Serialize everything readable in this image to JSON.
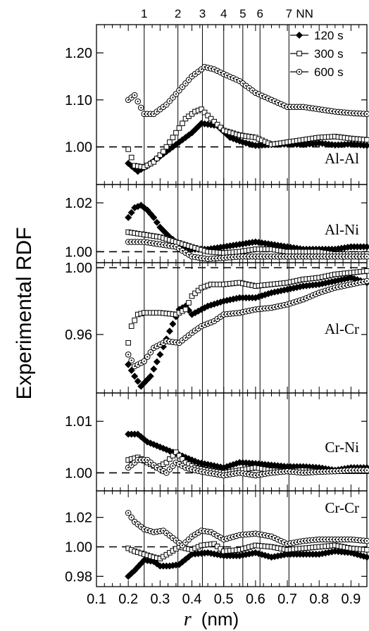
{
  "chart_data": {
    "type": "scatter",
    "ylabel": "Experimental RDF",
    "xlabel_symbol": "r",
    "xlabel_unit": "(nm)",
    "xlim": [
      0.1,
      0.95
    ],
    "x_ticks": [
      "0.1",
      "0.2",
      "0.3",
      "0.4",
      "0.5",
      "0.6",
      "0.7",
      "0.8",
      "0.9"
    ],
    "x_tick_values": [
      0.1,
      0.2,
      0.3,
      0.4,
      0.5,
      0.6,
      0.7,
      0.8,
      0.9
    ],
    "nn_shells": [
      {
        "label": "1",
        "r": 0.25
      },
      {
        "label": "2",
        "r": 0.356
      },
      {
        "label": "3",
        "r": 0.433
      },
      {
        "label": "4",
        "r": 0.5
      },
      {
        "label": "5",
        "r": 0.56
      },
      {
        "label": "6",
        "r": 0.614
      },
      {
        "label": "7",
        "r": 0.705
      }
    ],
    "nn_suffix": "NN",
    "legend": {
      "position": "top-right",
      "entries": [
        {
          "label": "120 s",
          "marker": "diamond"
        },
        {
          "label": "300 s",
          "marker": "square"
        },
        {
          "label": "600 s",
          "marker": "circle-dot"
        }
      ]
    },
    "reference_line": 1.0,
    "panels": [
      {
        "name": "Al-Al",
        "ylim": [
          0.92,
          1.26
        ],
        "y_ticks": [
          {
            "v": 1.0,
            "label": "1.00"
          },
          {
            "v": 1.1,
            "label": "1.10"
          },
          {
            "v": 1.2,
            "label": "1.20"
          }
        ],
        "series": [
          {
            "name": "120 s",
            "r": [
              0.2,
              0.23,
              0.26,
              0.3,
              0.35,
              0.4,
              0.43,
              0.48,
              0.52,
              0.56,
              0.6,
              0.65,
              0.7,
              0.75,
              0.8,
              0.85,
              0.9,
              0.95
            ],
            "g": [
              0.965,
              0.948,
              0.96,
              0.98,
              1.005,
              1.03,
              1.05,
              1.045,
              1.02,
              1.01,
              1.003,
              1.005,
              1.006,
              1.005,
              1.008,
              1.004,
              1.006,
              1.003
            ]
          },
          {
            "name": "300 s",
            "r": [
              0.2,
              0.22,
              0.25,
              0.28,
              0.31,
              0.35,
              0.38,
              0.41,
              0.43,
              0.46,
              0.5,
              0.55,
              0.6,
              0.65,
              0.7,
              0.75,
              0.8,
              0.85,
              0.9,
              0.95
            ],
            "g": [
              0.995,
              0.96,
              0.957,
              0.968,
              0.99,
              1.03,
              1.06,
              1.075,
              1.08,
              1.06,
              1.035,
              1.025,
              1.02,
              1.005,
              1.01,
              1.015,
              1.02,
              1.022,
              1.018,
              1.015
            ]
          },
          {
            "name": "600 s",
            "r": [
              0.2,
              0.22,
              0.25,
              0.28,
              0.32,
              0.36,
              0.4,
              0.44,
              0.47,
              0.5,
              0.55,
              0.6,
              0.65,
              0.7,
              0.75,
              0.8,
              0.85,
              0.9,
              0.95
            ],
            "g": [
              1.1,
              1.11,
              1.07,
              1.07,
              1.09,
              1.12,
              1.15,
              1.17,
              1.165,
              1.155,
              1.14,
              1.115,
              1.1,
              1.085,
              1.085,
              1.08,
              1.075,
              1.072,
              1.07
            ]
          }
        ]
      },
      {
        "name": "Al-Ni",
        "ylim": [
          0.9955,
          1.0275
        ],
        "y_ticks": [
          {
            "v": 1.0,
            "label": "1.00"
          },
          {
            "v": 1.02,
            "label": "1.02"
          }
        ],
        "series": [
          {
            "name": "120 s",
            "r": [
              0.2,
              0.22,
              0.24,
              0.26,
              0.28,
              0.3,
              0.33,
              0.36,
              0.4,
              0.45,
              0.5,
              0.55,
              0.6,
              0.65,
              0.7,
              0.75,
              0.8,
              0.85,
              0.9,
              0.95
            ],
            "g": [
              1.014,
              1.018,
              1.019,
              1.017,
              1.014,
              1.01,
              1.006,
              1.003,
              1.001,
              1.001,
              1.002,
              1.003,
              1.004,
              1.003,
              1.002,
              1.001,
              1.001,
              1.001,
              1.002,
              1.002
            ]
          },
          {
            "name": "300 s",
            "r": [
              0.2,
              0.25,
              0.3,
              0.35,
              0.4,
              0.45,
              0.5,
              0.55,
              0.6,
              0.65,
              0.7,
              0.75,
              0.8,
              0.85,
              0.9,
              0.95
            ],
            "g": [
              1.008,
              1.007,
              1.006,
              1.004,
              1.002,
              1.0,
              0.9995,
              1.0,
              1.001,
              1.001,
              1.0,
              1.0,
              1.0,
              0.999,
              0.999,
              0.999
            ]
          },
          {
            "name": "600 s",
            "r": [
              0.2,
              0.25,
              0.3,
              0.35,
              0.4,
              0.45,
              0.5,
              0.55,
              0.6,
              0.65,
              0.7,
              0.75,
              0.8,
              0.85,
              0.9,
              0.95
            ],
            "g": [
              1.004,
              1.004,
              1.003,
              1.002,
              0.998,
              0.997,
              0.9975,
              0.998,
              0.998,
              0.998,
              0.998,
              0.998,
              0.998,
              0.998,
              0.998,
              0.998
            ]
          }
        ]
      },
      {
        "name": "Al-Cr",
        "ylim": [
          0.925,
          1.003
        ],
        "y_ticks": [
          {
            "v": 0.96,
            "label": "0.96"
          },
          {
            "v": 1.0,
            "label": "1.00"
          }
        ],
        "series": [
          {
            "name": "120 s",
            "r": [
              0.2,
              0.22,
              0.24,
              0.27,
              0.3,
              0.33,
              0.36,
              0.38,
              0.4,
              0.43,
              0.45,
              0.5,
              0.55,
              0.6,
              0.65,
              0.7,
              0.75,
              0.8,
              0.85,
              0.9,
              0.95
            ],
            "g": [
              0.942,
              0.935,
              0.929,
              0.935,
              0.948,
              0.962,
              0.975,
              0.977,
              0.972,
              0.975,
              0.977,
              0.98,
              0.982,
              0.982,
              0.985,
              0.987,
              0.989,
              0.99,
              0.992,
              0.994,
              0.991
            ]
          },
          {
            "name": "300 s",
            "r": [
              0.2,
              0.21,
              0.23,
              0.25,
              0.3,
              0.35,
              0.38,
              0.4,
              0.43,
              0.46,
              0.5,
              0.55,
              0.6,
              0.65,
              0.7,
              0.75,
              0.8,
              0.85,
              0.9,
              0.95
            ],
            "g": [
              0.955,
              0.965,
              0.972,
              0.973,
              0.973,
              0.972,
              0.975,
              0.983,
              0.988,
              0.99,
              0.99,
              0.991,
              0.989,
              0.99,
              0.991,
              0.993,
              0.994,
              0.996,
              0.997,
              0.998
            ]
          },
          {
            "name": "600 s",
            "r": [
              0.2,
              0.22,
              0.25,
              0.28,
              0.32,
              0.36,
              0.4,
              0.43,
              0.47,
              0.5,
              0.55,
              0.6,
              0.65,
              0.7,
              0.75,
              0.8,
              0.85,
              0.9,
              0.95
            ],
            "g": [
              0.948,
              0.941,
              0.944,
              0.952,
              0.956,
              0.955,
              0.961,
              0.965,
              0.968,
              0.972,
              0.973,
              0.975,
              0.976,
              0.978,
              0.981,
              0.985,
              0.988,
              0.99,
              0.992
            ]
          }
        ]
      },
      {
        "name": "Cr-Ni",
        "ylim": [
          0.9965,
          1.0155
        ],
        "y_ticks": [
          {
            "v": 1.0,
            "label": "1.00"
          },
          {
            "v": 1.01,
            "label": "1.01"
          }
        ],
        "series": [
          {
            "name": "120 s",
            "r": [
              0.2,
              0.23,
              0.26,
              0.3,
              0.34,
              0.38,
              0.42,
              0.46,
              0.5,
              0.55,
              0.6,
              0.65,
              0.7,
              0.75,
              0.8,
              0.85,
              0.9,
              0.95
            ],
            "g": [
              1.0075,
              1.0075,
              1.006,
              1.005,
              1.004,
              1.003,
              1.002,
              1.0015,
              1.001,
              1.002,
              1.0018,
              1.0015,
              1.0012,
              1.0012,
              1.001,
              1.0005,
              1.001,
              1.001
            ]
          },
          {
            "name": "300 s",
            "r": [
              0.2,
              0.23,
              0.26,
              0.29,
              0.32,
              0.35,
              0.38,
              0.41,
              0.45,
              0.5,
              0.55,
              0.6,
              0.65,
              0.7,
              0.75,
              0.8,
              0.85,
              0.9,
              0.95
            ],
            "g": [
              1.0025,
              1.003,
              1.002,
              1.001,
              1.002,
              1.004,
              1.002,
              1.001,
              1.0005,
              1.0,
              1.0005,
              1.001,
              1.0005,
              1.0003,
              1.0005,
              1.0003,
              1.0003,
              1.0003,
              1.0003
            ]
          },
          {
            "name": "600 s",
            "r": [
              0.2,
              0.23,
              0.26,
              0.29,
              0.32,
              0.35,
              0.38,
              0.41,
              0.45,
              0.5,
              0.55,
              0.6,
              0.65,
              0.7,
              0.75,
              0.8,
              0.85,
              0.9,
              0.95
            ],
            "g": [
              1.001,
              1.0025,
              1.0025,
              1.001,
              1.0,
              1.002,
              1.001,
              1.0005,
              1.0,
              0.9995,
              1.0,
              0.9995,
              1.0,
              1.0003,
              1.0,
              1.0002,
              1.0003,
              1.0005,
              1.0005
            ]
          }
        ]
      },
      {
        "name": "Cr-Cr",
        "ylim": [
          0.973,
          1.038
        ],
        "y_ticks": [
          {
            "v": 0.98,
            "label": "0.98"
          },
          {
            "v": 1.0,
            "label": "1.00"
          },
          {
            "v": 1.02,
            "label": "1.02"
          }
        ],
        "series": [
          {
            "name": "120 s",
            "r": [
              0.2,
              0.22,
              0.25,
              0.28,
              0.3,
              0.33,
              0.36,
              0.4,
              0.45,
              0.5,
              0.55,
              0.6,
              0.65,
              0.7,
              0.75,
              0.8,
              0.85,
              0.9,
              0.95
            ],
            "g": [
              0.98,
              0.984,
              0.991,
              0.99,
              0.987,
              0.987,
              0.988,
              0.995,
              0.996,
              0.994,
              0.994,
              0.996,
              0.993,
              0.995,
              0.995,
              0.995,
              0.997,
              0.996,
              0.993
            ]
          },
          {
            "name": "300 s",
            "r": [
              0.2,
              0.22,
              0.25,
              0.28,
              0.3,
              0.33,
              0.36,
              0.4,
              0.43,
              0.47,
              0.5,
              0.55,
              0.6,
              0.65,
              0.7,
              0.75,
              0.8,
              0.85,
              0.9,
              0.95
            ],
            "g": [
              0.999,
              0.997,
              0.995,
              0.993,
              0.992,
              0.996,
              1.0,
              0.998,
              1.001,
              1.002,
              0.997,
              0.998,
              1.001,
              1.0,
              0.998,
              0.999,
              1.0,
              1.001,
              0.999,
              0.998
            ]
          },
          {
            "name": "600 s",
            "r": [
              0.2,
              0.22,
              0.25,
              0.28,
              0.31,
              0.34,
              0.37,
              0.4,
              0.43,
              0.46,
              0.5,
              0.55,
              0.6,
              0.65,
              0.7,
              0.75,
              0.8,
              0.85,
              0.9,
              0.95
            ],
            "g": [
              1.023,
              1.017,
              1.012,
              1.01,
              1.011,
              1.006,
              1.001,
              1.007,
              1.011,
              1.01,
              1.005,
              1.008,
              1.009,
              1.007,
              1.002,
              1.004,
              1.005,
              1.005,
              1.005,
              1.004
            ]
          }
        ]
      }
    ]
  }
}
